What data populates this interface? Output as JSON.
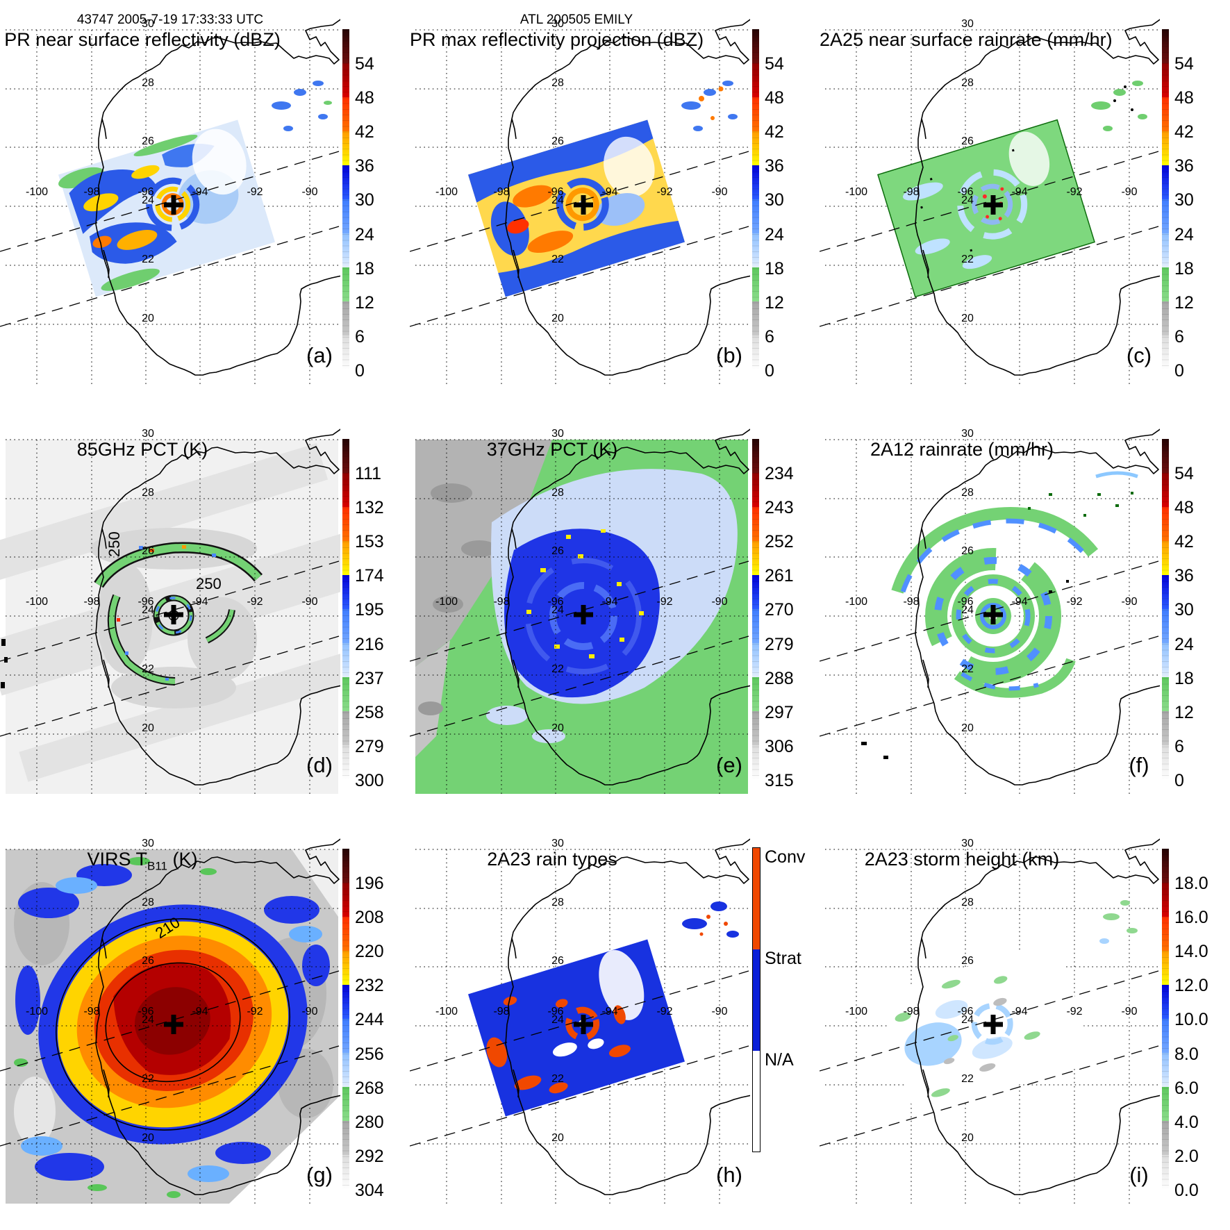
{
  "header": {
    "left": "43747 2005-7-19 17:33:33 UTC",
    "center": "ATL 200505 EMILY"
  },
  "map": {
    "lon_labels": [
      "-100",
      "-98",
      "-96",
      "-94",
      "-92",
      "-90"
    ],
    "lat_labels": [
      "30",
      "28",
      "26",
      "24",
      "22",
      "20"
    ],
    "storm_center_marker": "+"
  },
  "panels": [
    {
      "letter": "(a)",
      "title": "PR near surface reflectivity (dBZ)",
      "colorbar": {
        "units": "dBZ",
        "ticks": [
          "54",
          "48",
          "42",
          "36",
          "30",
          "24",
          "18",
          "12",
          "6",
          "0"
        ]
      }
    },
    {
      "letter": "(b)",
      "title": "PR max reflectivity projection (dBZ)",
      "colorbar": {
        "units": "dBZ",
        "ticks": [
          "54",
          "48",
          "42",
          "36",
          "30",
          "24",
          "18",
          "12",
          "6",
          "0"
        ]
      }
    },
    {
      "letter": "(c)",
      "title": "2A25 near surface rainrate (mm/hr)",
      "colorbar": {
        "units": "mm/hr",
        "ticks": [
          "54",
          "48",
          "42",
          "36",
          "30",
          "24",
          "18",
          "12",
          "6",
          "0"
        ]
      }
    },
    {
      "letter": "(d)",
      "title": "85GHz PCT (K)",
      "colorbar": {
        "units": "K",
        "ticks": [
          "111",
          "132",
          "153",
          "174",
          "195",
          "216",
          "237",
          "258",
          "279",
          "300"
        ]
      },
      "contour_labels": [
        "250",
        "250"
      ]
    },
    {
      "letter": "(e)",
      "title": "37GHz PCT (K)",
      "colorbar": {
        "units": "K",
        "ticks": [
          "234",
          "243",
          "252",
          "261",
          "270",
          "279",
          "288",
          "297",
          "306",
          "315"
        ]
      }
    },
    {
      "letter": "(f)",
      "title": "2A12 rainrate (mm/hr)",
      "colorbar": {
        "units": "mm/hr",
        "ticks": [
          "54",
          "48",
          "42",
          "36",
          "30",
          "24",
          "18",
          "12",
          "6",
          "0"
        ]
      }
    },
    {
      "letter": "(g)",
      "title_pre": "VIRS T",
      "title_sub": "B11",
      "title_post": " (K)",
      "colorbar": {
        "units": "K",
        "ticks": [
          "196",
          "208",
          "220",
          "232",
          "244",
          "256",
          "268",
          "280",
          "292",
          "304"
        ]
      },
      "contour_labels": [
        "210"
      ]
    },
    {
      "letter": "(h)",
      "title": "2A23 rain types",
      "colorbar": {
        "categories": [
          "Conv",
          "Strat",
          "N/A"
        ]
      }
    },
    {
      "letter": "(i)",
      "title": "2A23 storm height (km)",
      "colorbar": {
        "units": "km",
        "ticks": [
          "18.0",
          "16.0",
          "14.0",
          "12.0",
          "10.0",
          "8.0",
          "6.0",
          "4.0",
          "2.0",
          "0.0"
        ]
      }
    }
  ],
  "colors": {
    "scale_darkred": "#6d0d0d",
    "scale_red": "#d80000",
    "scale_orange": "#ff7300",
    "scale_yellow": "#ffff00",
    "scale_blue": "#2b5cff",
    "scale_lightblue": "#a9ccf7",
    "scale_green": "#6fce6f",
    "scale_gray": "#bdbdbd",
    "conv": "#f04800",
    "strat": "#1832e0"
  },
  "chart_data": {
    "type": "heatmap",
    "figure": "3x3 multi-panel TRMM satellite overview of a hurricane over the Gulf of Mexico",
    "orbit_header": "43747 2005-7-19 17:33:33 UTC",
    "storm_header": "ATL 200505 EMILY",
    "geo": {
      "lon_gridlines": [
        -100,
        -98,
        -96,
        -94,
        -92,
        -90
      ],
      "lat_gridlines": [
        30,
        28,
        26,
        24,
        22,
        20
      ],
      "storm_center_approx": {
        "lon": -95.0,
        "lat": 24.1
      }
    },
    "panels": [
      {
        "id": "a",
        "title": "PR near surface reflectivity (dBZ)",
        "units": "dBZ",
        "scale_ticks": [
          54,
          48,
          42,
          36,
          30,
          24,
          18,
          12,
          6,
          0
        ]
      },
      {
        "id": "b",
        "title": "PR max reflectivity projection (dBZ)",
        "units": "dBZ",
        "scale_ticks": [
          54,
          48,
          42,
          36,
          30,
          24,
          18,
          12,
          6,
          0
        ]
      },
      {
        "id": "c",
        "title": "2A25 near surface rainrate (mm/hr)",
        "units": "mm/hr",
        "scale_ticks": [
          54,
          48,
          42,
          36,
          30,
          24,
          18,
          12,
          6,
          0
        ]
      },
      {
        "id": "d",
        "title": "85GHz PCT (K)",
        "units": "K",
        "scale_ticks": [
          111,
          132,
          153,
          174,
          195,
          216,
          237,
          258,
          279,
          300
        ],
        "contour_labels": [
          250,
          250
        ]
      },
      {
        "id": "e",
        "title": "37GHz PCT (K)",
        "units": "K",
        "scale_ticks": [
          234,
          243,
          252,
          261,
          270,
          279,
          288,
          297,
          306,
          315
        ]
      },
      {
        "id": "f",
        "title": "2A12 rainrate (mm/hr)",
        "units": "mm/hr",
        "scale_ticks": [
          54,
          48,
          42,
          36,
          30,
          24,
          18,
          12,
          6,
          0
        ]
      },
      {
        "id": "g",
        "title": "VIRS TB11 (K)",
        "units": "K",
        "scale_ticks": [
          196,
          208,
          220,
          232,
          244,
          256,
          268,
          280,
          292,
          304
        ],
        "contour_labels": [
          210
        ]
      },
      {
        "id": "h",
        "title": "2A23 rain types",
        "units": "category",
        "scale_ticks": [
          "Conv",
          "Strat",
          "N/A"
        ]
      },
      {
        "id": "i",
        "title": "2A23 storm height (km)",
        "units": "km",
        "scale_ticks": [
          18,
          16,
          14,
          12,
          10,
          8,
          6,
          4,
          2,
          0
        ]
      }
    ]
  }
}
